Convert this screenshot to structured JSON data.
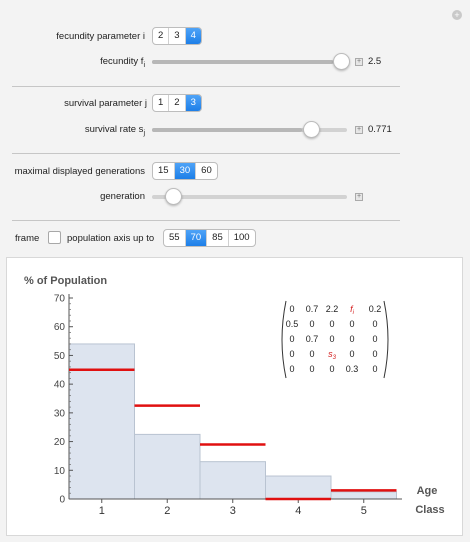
{
  "controls": {
    "fecundity_param": {
      "label": "fecundity parameter i",
      "options": [
        "2",
        "3",
        "4"
      ],
      "selected": 2
    },
    "fecundity_slider": {
      "label_main": "fecundity f",
      "label_sub": "i",
      "value": "2.5",
      "fraction": 0.93
    },
    "survival_param": {
      "label": "survival parameter j",
      "options": [
        "1",
        "2",
        "3"
      ],
      "selected": 2
    },
    "survival_slider": {
      "label_main": "survival rate s",
      "label_sub": "j",
      "value": "0.771",
      "fraction": 0.77
    },
    "generations": {
      "label": "maximal displayed generations",
      "options": [
        "15",
        "30",
        "60"
      ],
      "selected": 1
    },
    "generation_slider": {
      "label": "generation",
      "fraction": 0.03
    },
    "frame": {
      "label": "frame",
      "checked": false
    },
    "population_axis": {
      "label": "population axis up to",
      "options": [
        "55",
        "70",
        "85",
        "100"
      ],
      "selected": 1
    }
  },
  "matrix": [
    [
      "0",
      "0.7",
      "2.2",
      "f",
      "0.2"
    ],
    [
      "0.5",
      "0",
      "0",
      "0",
      "0"
    ],
    [
      "0",
      "0.7",
      "0",
      "0",
      "0"
    ],
    [
      "0",
      "0",
      "s",
      "0",
      "0"
    ],
    [
      "0",
      "0",
      "0",
      "0.3",
      "0"
    ]
  ],
  "matrix_subscripts": {
    "f": "i",
    "s": "3"
  },
  "chart_data": {
    "type": "bar",
    "ylabel": "% of Population",
    "xlabel_line1": "Age",
    "xlabel_line2": "Class",
    "categories": [
      "1",
      "2",
      "3",
      "4",
      "5"
    ],
    "values": [
      54,
      22.5,
      13,
      8,
      2.5
    ],
    "markers": [
      45,
      32.5,
      19,
      0,
      3
    ],
    "ylim": [
      0,
      70
    ],
    "yticks": [
      "0",
      "10",
      "20",
      "30",
      "40",
      "50",
      "60",
      "70"
    ],
    "bar_color": "#dde4ef",
    "bar_edge": "#b9c3d1",
    "marker_color": "#e01010"
  }
}
